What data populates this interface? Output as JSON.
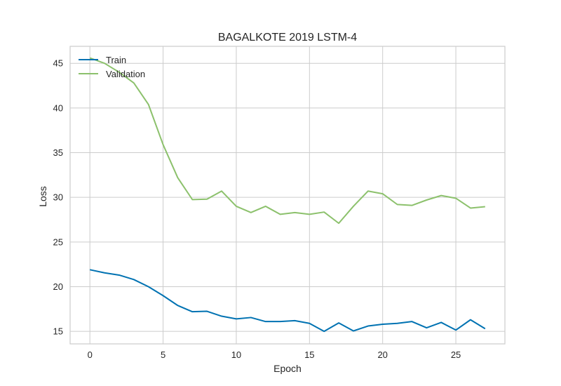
{
  "chart_data": {
    "type": "line",
    "title": "BAGALKOTE 2019 LSTM-4",
    "xlabel": "Epoch",
    "ylabel": "Loss",
    "xlim": [
      -1.35,
      28.35
    ],
    "ylim": [
      13.6,
      46.9
    ],
    "xticks": [
      0,
      5,
      10,
      15,
      20,
      25
    ],
    "yticks": [
      15,
      20,
      25,
      30,
      35,
      40,
      45
    ],
    "grid": true,
    "legend": "top-left",
    "x": [
      0,
      1,
      2,
      3,
      4,
      5,
      6,
      7,
      8,
      9,
      10,
      11,
      12,
      13,
      14,
      15,
      16,
      17,
      18,
      19,
      20,
      21,
      22,
      23,
      24,
      25,
      26,
      27
    ],
    "series": [
      {
        "name": "Train",
        "color": "#0072b2",
        "values": [
          21.9,
          21.55,
          21.3,
          20.8,
          20.0,
          19.0,
          17.9,
          17.2,
          17.25,
          16.7,
          16.4,
          16.55,
          16.1,
          16.1,
          16.2,
          15.9,
          15.0,
          15.95,
          15.05,
          15.6,
          15.8,
          15.9,
          16.1,
          15.4,
          16.0,
          15.15,
          16.3,
          15.3
        ]
      },
      {
        "name": "Validation",
        "color": "#8cc16c",
        "values": [
          45.6,
          45.0,
          44.0,
          42.8,
          40.4,
          35.9,
          32.2,
          29.75,
          29.8,
          30.7,
          29.0,
          28.3,
          29.0,
          28.1,
          28.3,
          28.1,
          28.35,
          27.1,
          29.0,
          30.7,
          30.4,
          29.2,
          29.1,
          29.7,
          30.2,
          29.9,
          28.8,
          28.95
        ]
      }
    ]
  }
}
